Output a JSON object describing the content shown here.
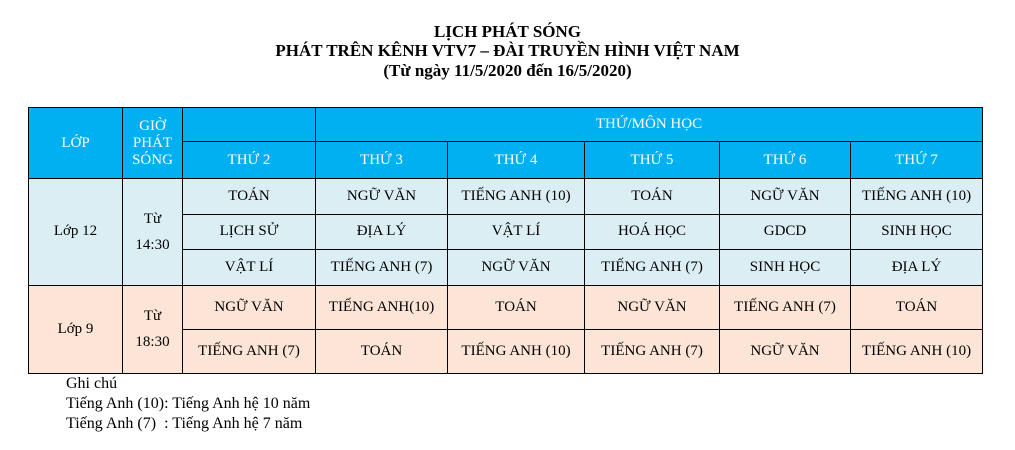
{
  "title": [
    "LỊCH PHÁT SÓNG",
    "PHÁT TRÊN KÊNH VTV7 – ĐÀI TRUYỀN HÌNH VIỆT NAM",
    "(Từ ngày 11/5/2020 đến 16/5/2020)"
  ],
  "colors": {
    "header": "#00b0f0",
    "grade12": "#dbeef4",
    "grade9": "#fce4d6"
  },
  "table": {
    "headers": {
      "class": "LỚP",
      "time": "GIỜ PHÁT SÓNG",
      "group": "THỨ/MÔN HỌC",
      "days": [
        "THỨ 2",
        "THỨ 3",
        "THỨ 4",
        "THỨ 5",
        "THỨ 6",
        "THỨ 7"
      ]
    },
    "groups": [
      {
        "class": "Lớp 12",
        "time": [
          "Từ",
          "14:30"
        ],
        "rows": [
          [
            "TOÁN",
            "NGỮ VĂN",
            "TIẾNG ANH (10)",
            "TOÁN",
            "NGỮ VĂN",
            "TIẾNG ANH (10)"
          ],
          [
            "LỊCH SỬ",
            "ĐỊA LÝ",
            "VẬT LÍ",
            "HOÁ HỌC",
            "GDCD",
            "SINH HỌC"
          ],
          [
            "VẬT LÍ",
            "TIẾNG ANH (7)",
            "NGỮ VĂN",
            "TIẾNG ANH (7)",
            "SINH HỌC",
            "ĐỊA LÝ"
          ]
        ]
      },
      {
        "class": "Lớp 9",
        "time": [
          "Từ",
          "18:30"
        ],
        "rows": [
          [
            "NGỮ VĂN",
            "TIẾNG ANH(10)",
            "TOÁN",
            "NGỮ VĂN",
            "TIẾNG ANH (7)",
            "TOÁN"
          ],
          [
            "TIẾNG ANH (7)",
            "TOÁN",
            "TIẾNG ANH (10)",
            "TIẾNG ANH (7)",
            "NGỮ VĂN",
            "TIẾNG ANH (10)"
          ]
        ]
      }
    ]
  },
  "notes": [
    "Ghi chú",
    "Tiếng Anh (10): Tiếng Anh hệ 10 năm",
    "Tiếng Anh (7)  : Tiếng Anh hệ 7 năm"
  ]
}
